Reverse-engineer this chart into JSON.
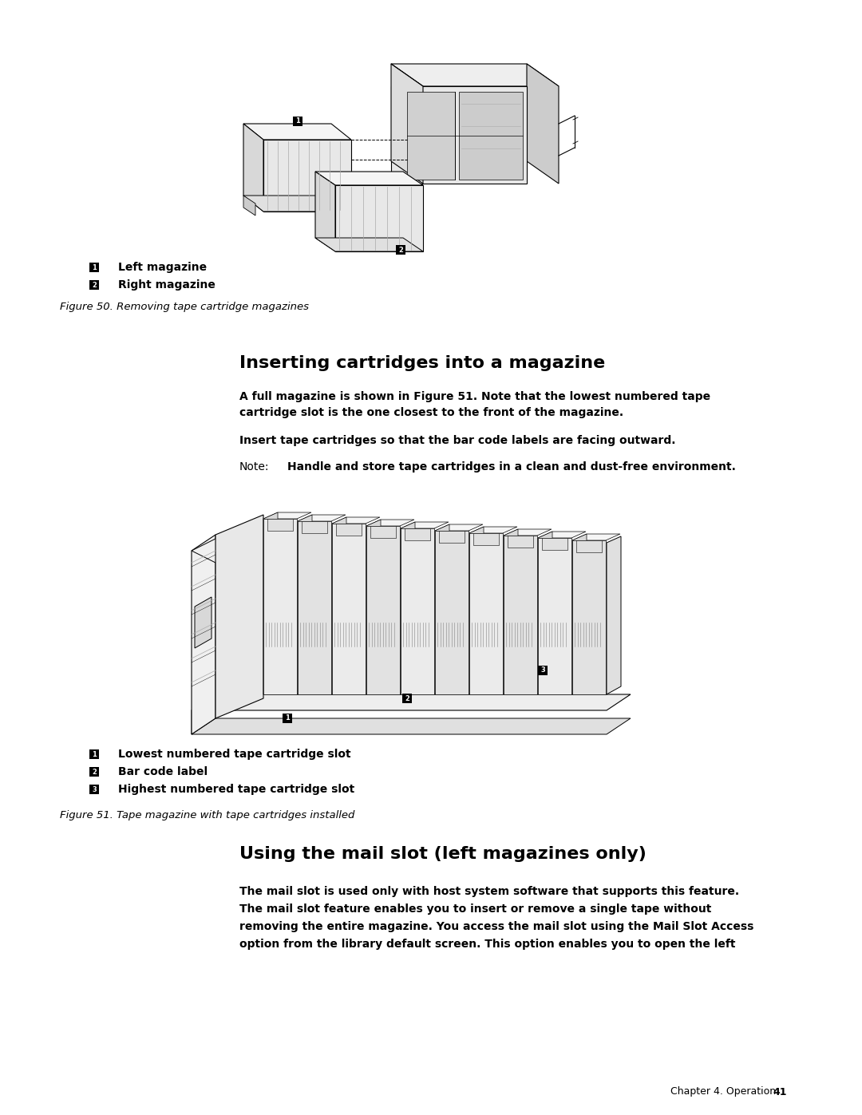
{
  "bg_color": "#ffffff",
  "page_width": 10.8,
  "page_height": 13.97,
  "label1_fig50_text": "Left magazine",
  "label2_fig50_text": "Right magazine",
  "fig50_caption": "Figure 50. Removing tape cartridge magazines",
  "section_title": "Inserting cartridges into a magazine",
  "para1_line1": "A full magazine is shown in Figure 51. Note that the lowest numbered tape",
  "para1_line2": "cartridge slot is the one closest to the front of the magazine.",
  "para2": "Insert tape cartridges so that the bar code labels are facing outward.",
  "note_label": "Note:",
  "note_text": "Handle and store tape cartridges in a clean and dust-free environment.",
  "label1_fig51_text": "Lowest numbered tape cartridge slot",
  "label2_fig51_text": "Bar code label",
  "label3_fig51_text": "Highest numbered tape cartridge slot",
  "fig51_caption": "Figure 51. Tape magazine with tape cartridges installed",
  "section2_title": "Using the mail slot (left magazines only)",
  "para3_line1": "The mail slot is used only with host system software that supports this feature.",
  "para3_line2": "The mail slot feature enables you to insert or remove a single tape without",
  "para3_line3": "removing the entire magazine. You access the mail slot using the Mail Slot Access",
  "para3_line4": "option from the library default screen. This option enables you to open the left",
  "footer_text": "Chapter 4. Operation",
  "footer_number": "41",
  "font_color": "#000000",
  "title_fontsize": 16,
  "body_fontsize": 10,
  "caption_fontsize": 9.5,
  "footer_fontsize": 9
}
